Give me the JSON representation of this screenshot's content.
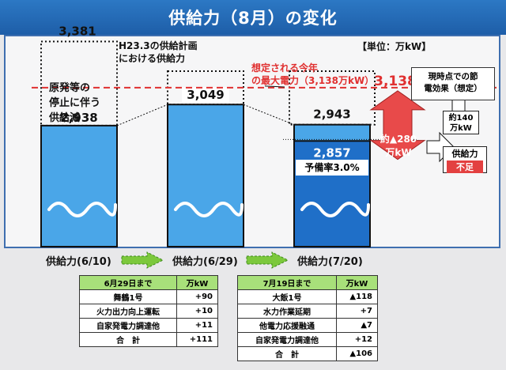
{
  "title": "供給力（8月）の変化",
  "unit": "【単位：万kW】",
  "chart_data": {
    "type": "bar",
    "categories": [
      "供給力(6/10)",
      "供給力(6/29)",
      "供給力(7/20)"
    ],
    "values": [
      2938,
      3049,
      2943
    ],
    "value_labels": [
      "2,938",
      "3,049",
      "2,943"
    ],
    "plan_value": 3381,
    "plan_label": "3,381",
    "demand_value": 3138,
    "demand_label": "3,138",
    "savings_value": 140,
    "inner_value": 2857,
    "inner_label": "2,857",
    "ylim": [
      2300,
      3450
    ],
    "colors": {
      "bar": "#4aa6e8",
      "bar_dark": "#1f6fc8",
      "demand": "#e03030",
      "arrow": "#e84a4a"
    }
  },
  "annotations": {
    "plan_note": [
      "H23.3の供給計画",
      "における供給力"
    ],
    "reduction_note": [
      "原発等の",
      "停止に伴う",
      "供給減"
    ],
    "demand_note": [
      "想定される今年",
      "の最大電力（3,138万kW）"
    ],
    "savings_note": [
      "現時点での節",
      "電効果（想定）"
    ],
    "savings_value_label": [
      "約140",
      "万kW"
    ],
    "gap_label": [
      "約▲280",
      "万kW"
    ],
    "shortage_label": [
      "供給力",
      "不足"
    ],
    "reserve_label": "予備率3.0%"
  },
  "table1": {
    "header": [
      "6月29日まで",
      "万kW"
    ],
    "rows": [
      [
        "舞鶴1号",
        "+90"
      ],
      [
        "火力出力向上運転",
        "+10"
      ],
      [
        "自家発電力調達他",
        "+11"
      ],
      [
        "合　計",
        "+111"
      ]
    ]
  },
  "table2": {
    "header": [
      "7月19日まで",
      "万kW"
    ],
    "rows": [
      [
        "大飯1号",
        "▲118"
      ],
      [
        "水力作業延期",
        "+7"
      ],
      [
        "他電力応援融通",
        "▲7"
      ],
      [
        "自家発電力調達他",
        "+12"
      ],
      [
        "合　計",
        "▲106"
      ]
    ]
  }
}
